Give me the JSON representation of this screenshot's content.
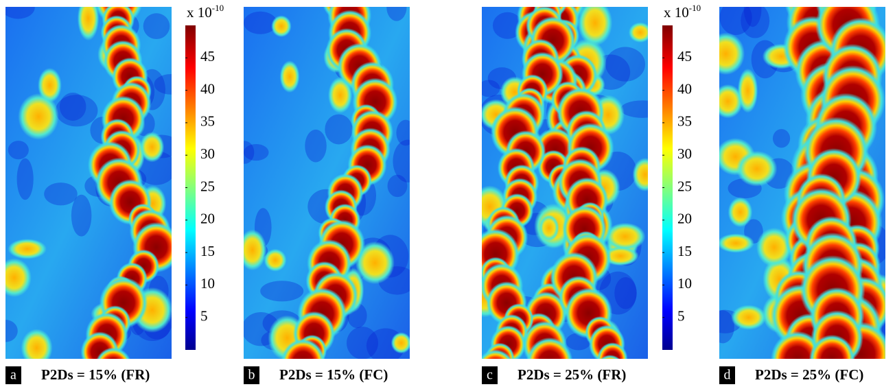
{
  "panels": [
    {
      "letter": "a",
      "caption": "P2Ds = 15% (FR)"
    },
    {
      "letter": "b",
      "caption": "P2Ds = 15% (FC)"
    },
    {
      "letter": "c",
      "caption": "P2Ds = 25% (FR)"
    },
    {
      "letter": "d",
      "caption": "P2Ds = 25% (FC)"
    }
  ],
  "colorbars": [
    {
      "unit": "x 10",
      "exponent": "-10",
      "range": [
        0,
        50
      ],
      "ticks": [
        5,
        10,
        15,
        20,
        25,
        30,
        35,
        40,
        45
      ]
    },
    {
      "unit": "x 10",
      "exponent": "-10",
      "range": [
        0,
        50
      ],
      "ticks": [
        5,
        10,
        15,
        20,
        25,
        30,
        35,
        40,
        45
      ]
    }
  ]
}
